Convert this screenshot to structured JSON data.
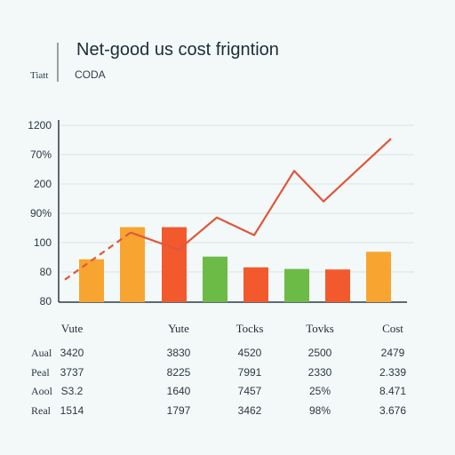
{
  "header": {
    "title": "Net-good us cost frigntion",
    "subtitle": "CODA",
    "side_label": "Tiatt"
  },
  "chart_data": {
    "type": "bar",
    "y_tick_labels": [
      "1200",
      "70%",
      "200",
      "90%",
      "100",
      "80",
      "80"
    ],
    "bars": [
      {
        "value": 80,
        "color": "#f7a530"
      },
      {
        "value": 140,
        "color": "#f7a530"
      },
      {
        "value": 140,
        "color": "#f25a2e"
      },
      {
        "value": 85,
        "color": "#6dbb47"
      },
      {
        "value": 65,
        "color": "#f25a2e"
      },
      {
        "value": 62,
        "color": "#6dbb47"
      },
      {
        "value": 61,
        "color": "#f25a2e"
      },
      {
        "value": 94,
        "color": "#f7a530"
      }
    ],
    "line": {
      "color": "#e2553a",
      "values": [
        42,
        130,
        98,
        158,
        125,
        245,
        188,
        305
      ]
    },
    "colors": {
      "orange": "#f7a530",
      "red": "#f25a2e",
      "green": "#6dbb47",
      "line": "#e2553a",
      "grid": "#d8e2e2"
    }
  },
  "table": {
    "columns": [
      "Vute",
      "Yute",
      "Tocks",
      "Tovks",
      "Cost"
    ],
    "rows": [
      {
        "label": "Aual",
        "cells": [
          "3420",
          "3830",
          "4520",
          "2500",
          "2479"
        ]
      },
      {
        "label": "Peal",
        "cells": [
          "3737",
          "8225",
          "7991",
          "2330",
          "2.339"
        ]
      },
      {
        "label": "Aool",
        "cells": [
          "S3.2",
          "1640",
          "7457",
          "25%",
          "8.471"
        ]
      },
      {
        "label": "Real",
        "cells": [
          "1514",
          "1797",
          "3462",
          "98%",
          "3.676"
        ]
      }
    ]
  }
}
